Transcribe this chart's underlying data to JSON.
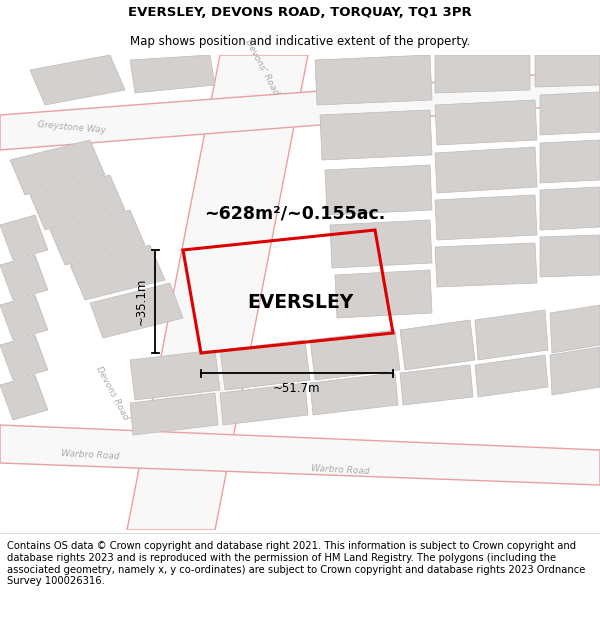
{
  "title": "EVERSLEY, DEVONS ROAD, TORQUAY, TQ1 3PR",
  "subtitle": "Map shows position and indicative extent of the property.",
  "footer": "Contains OS data © Crown copyright and database right 2021. This information is subject to Crown copyright and database rights 2023 and is reproduced with the permission of HM Land Registry. The polygons (including the associated geometry, namely x, y co-ordinates) are subject to Crown copyright and database rights 2023 Ordnance Survey 100026316.",
  "area_label": "~628m²/~0.155ac.",
  "property_label": "EVERSLEY",
  "width_label": "~51.7m",
  "height_label": "~35.1m",
  "map_bg": "#eeeceb",
  "road_fill": "#f8f8f8",
  "building_fill": "#d4d0ce",
  "road_line_color": "#e8a0a0",
  "property_color": "#dd0000",
  "title_fontsize": 9.5,
  "subtitle_fontsize": 8.5,
  "footer_fontsize": 7.2
}
